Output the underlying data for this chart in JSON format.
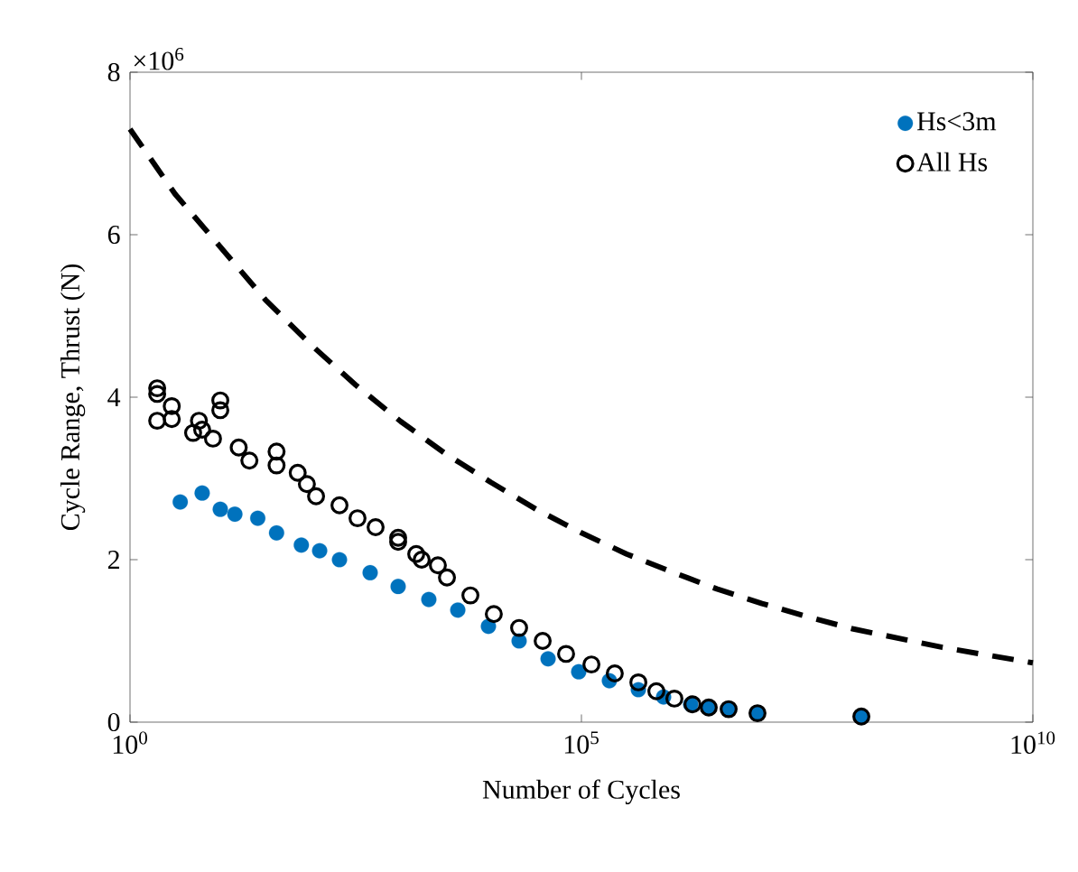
{
  "chart_data": {
    "type": "scatter",
    "xlabel": "Number of Cycles",
    "ylabel": "Cycle Range, Thrust (N)",
    "log": "x",
    "legend": "top right",
    "xlim": [
      1,
      10000000000
    ],
    "xticks": [
      {
        "value": 1,
        "label": "10$^{0}$"
      },
      {
        "value": 100000,
        "label": "10$^{5}$"
      },
      {
        "value": 10000000000,
        "label": "10$^{10}$"
      }
    ],
    "ylim": [
      0,
      8
    ],
    "yticks": [
      0,
      2,
      4,
      6,
      8
    ],
    "annotations": [
      "×10$^{6}$"
    ],
    "series": [
      {
        "name": "Hs<3m",
        "color": "#0072bd",
        "marker": "circle",
        "x": [
          3.6,
          6.3,
          10,
          14.5,
          26,
          42,
          79,
          126,
          209,
          457,
          933,
          2040,
          4270,
          9330,
          20400,
          42700,
          93300,
          204000,
          427000,
          813000,
          1620000,
          2570000,
          4270000,
          8910000,
          126000000
        ],
        "values": [
          2.71,
          2.82,
          2.62,
          2.56,
          2.51,
          2.33,
          2.18,
          2.11,
          2.0,
          1.84,
          1.67,
          1.51,
          1.38,
          1.18,
          1.0,
          0.78,
          0.62,
          0.51,
          0.4,
          0.31,
          0.22,
          0.18,
          0.16,
          0.11,
          0.07
        ]
      },
      {
        "name": "All Hs",
        "color": "#000000",
        "marker": "open circle",
        "x": [
          2.0,
          2.0,
          2.0,
          2.9,
          2.9,
          5.0,
          5.8,
          6.3,
          8.3,
          10,
          10,
          16,
          21,
          42,
          42,
          72,
          91,
          115,
          209,
          331,
          525,
          933,
          933,
          1480,
          1700,
          2570,
          3240,
          5890,
          10700,
          20400,
          37200,
          67600,
          129000,
          234000,
          427000,
          676000,
          1070000,
          1700000,
          2570000,
          4270000,
          8910000,
          126000000
        ],
        "values": [
          4.11,
          4.04,
          3.71,
          3.89,
          3.73,
          3.56,
          3.71,
          3.6,
          3.49,
          3.84,
          3.96,
          3.38,
          3.22,
          3.33,
          3.16,
          3.07,
          2.93,
          2.78,
          2.67,
          2.51,
          2.4,
          2.27,
          2.22,
          2.07,
          2.0,
          1.93,
          1.78,
          1.56,
          1.33,
          1.16,
          1.0,
          0.84,
          0.71,
          0.6,
          0.49,
          0.38,
          0.29,
          0.22,
          0.18,
          0.16,
          0.11,
          0.07
        ]
      },
      {
        "type": "line",
        "color": "#000000",
        "line_style": "dashed",
        "marker": "none",
        "x": [
          1,
          3.16,
          10,
          31.6,
          100,
          316,
          1000,
          3160,
          10000,
          31600,
          100000,
          316000,
          1000000,
          3160000,
          10000000,
          31600000,
          100000000,
          1000000000,
          10000000000
        ],
        "values": [
          7.3,
          6.5,
          5.85,
          5.2,
          4.65,
          4.15,
          3.7,
          3.3,
          2.95,
          2.62,
          2.33,
          2.07,
          1.85,
          1.64,
          1.46,
          1.3,
          1.15,
          0.92,
          0.73
        ]
      }
    ]
  }
}
